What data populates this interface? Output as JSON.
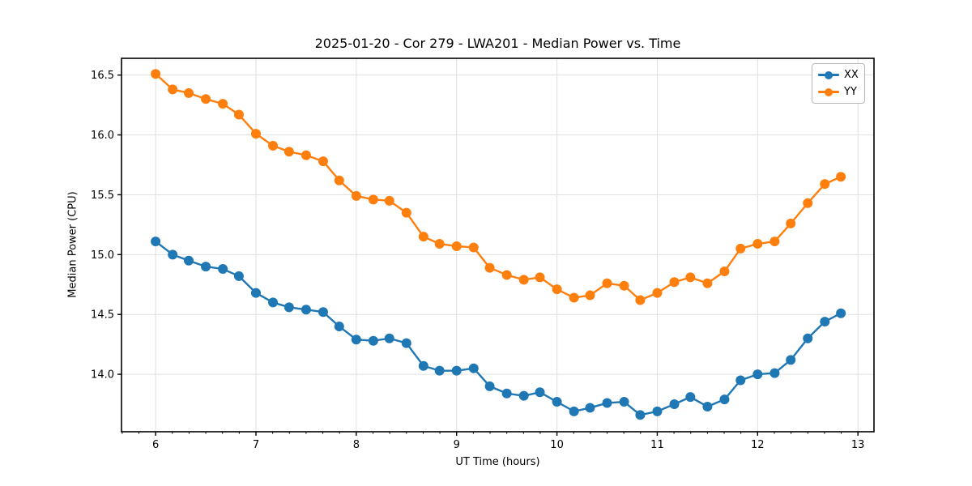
{
  "chart_data": {
    "type": "line",
    "title": "2025-01-20 - Cor 279 - LWA201 - Median Power vs. Time",
    "xlabel": "UT Time (hours)",
    "ylabel": "Median Power (CPU)",
    "xlim": [
      5.66,
      13.16
    ],
    "ylim": [
      13.52,
      16.64
    ],
    "x_ticks": [
      6,
      7,
      8,
      9,
      10,
      11,
      12,
      13
    ],
    "x_tick_labels": [
      "6",
      "7",
      "8",
      "9",
      "10",
      "11",
      "12",
      "13"
    ],
    "y_ticks": [
      14.0,
      14.5,
      15.0,
      15.5,
      16.0,
      16.5
    ],
    "y_tick_labels": [
      "14.0",
      "14.5",
      "15.0",
      "15.5",
      "16.0",
      "16.5"
    ],
    "minor_tick_interval_x": 0.166667,
    "grid": true,
    "grid_color": "#e0e0e0",
    "legend_position": "upper right",
    "x": [
      6.0,
      6.17,
      6.33,
      6.5,
      6.67,
      6.83,
      7.0,
      7.17,
      7.33,
      7.5,
      7.67,
      7.83,
      8.0,
      8.17,
      8.33,
      8.5,
      8.67,
      8.83,
      9.0,
      9.17,
      9.33,
      9.5,
      9.67,
      9.83,
      10.0,
      10.17,
      10.33,
      10.5,
      10.67,
      10.83,
      11.0,
      11.17,
      11.33,
      11.5,
      11.67,
      11.83,
      12.0,
      12.17,
      12.33,
      12.5,
      12.67,
      12.83
    ],
    "series": [
      {
        "name": "XX",
        "color": "#1f77b4",
        "values": [
          15.11,
          15.0,
          14.95,
          14.9,
          14.88,
          14.82,
          14.68,
          14.6,
          14.56,
          14.54,
          14.52,
          14.4,
          14.29,
          14.28,
          14.3,
          14.26,
          14.07,
          14.03,
          14.03,
          14.05,
          13.9,
          13.84,
          13.82,
          13.85,
          13.77,
          13.69,
          13.72,
          13.76,
          13.77,
          13.66,
          13.69,
          13.75,
          13.81,
          13.73,
          13.79,
          13.95,
          14.0,
          14.01,
          14.12,
          14.3,
          14.44,
          14.51
        ]
      },
      {
        "name": "YY",
        "color": "#ff7f0e",
        "values": [
          16.51,
          16.38,
          16.35,
          16.3,
          16.26,
          16.17,
          16.01,
          15.91,
          15.86,
          15.83,
          15.78,
          15.62,
          15.49,
          15.46,
          15.45,
          15.35,
          15.15,
          15.09,
          15.07,
          15.06,
          14.89,
          14.83,
          14.79,
          14.81,
          14.71,
          14.64,
          14.66,
          14.76,
          14.74,
          14.62,
          14.68,
          14.77,
          14.81,
          14.76,
          14.86,
          15.05,
          15.09,
          15.11,
          15.26,
          15.43,
          15.59,
          15.65
        ]
      }
    ]
  }
}
